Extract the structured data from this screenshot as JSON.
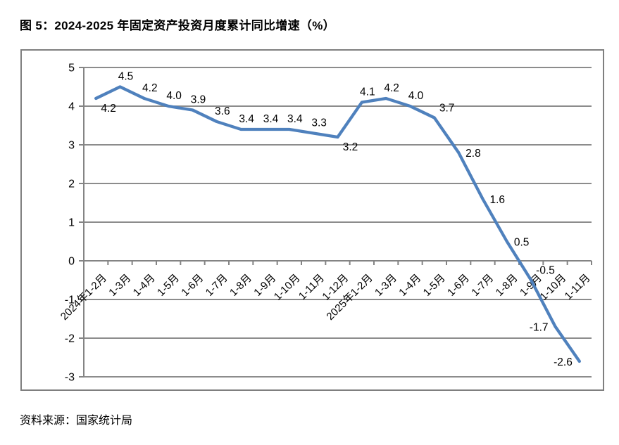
{
  "page": {
    "title": "图 5：2024-2025 年固定资产投资月度累计同比增速（%）",
    "source": "资料来源：国家统计局"
  },
  "chart_data": {
    "type": "line",
    "title": "2024-2025 年固定资产投资月度累计同比增速（%）",
    "categories": [
      "2024年1-2月",
      "1-3月",
      "1-4月",
      "1-5月",
      "1-6月",
      "1-7月",
      "1-8月",
      "1-9月",
      "1-10月",
      "1-11月",
      "1-12月",
      "2025年1-2月",
      "1-3月",
      "1-4月",
      "1-5月",
      "1-6月",
      "1-7月",
      "1-8月",
      "1-9月",
      "1-10月",
      "1-11月"
    ],
    "values": [
      4.2,
      4.5,
      4.2,
      4.0,
      3.9,
      3.6,
      3.4,
      3.4,
      3.4,
      3.3,
      3.2,
      4.1,
      4.2,
      4.0,
      3.7,
      2.8,
      1.6,
      0.5,
      -0.5,
      -1.7,
      -2.6
    ],
    "data_labels": [
      "4.2",
      "4.5",
      "4.2",
      "4.0",
      "3.9",
      "3.6",
      "3.4",
      "3.4",
      "3.4",
      "3.3",
      "3.2",
      "4.1",
      "4.2",
      "4.0",
      "3.7",
      "2.8",
      "1.6",
      "0.5",
      "-0.5",
      "-1.7",
      "-2.6"
    ],
    "label_placements": [
      "below",
      "above",
      "above",
      "above",
      "above",
      "above",
      "above",
      "above",
      "above",
      "above",
      "below",
      "above",
      "above",
      "above",
      "above-right",
      "right",
      "right",
      "right",
      "above-right",
      "left",
      "left"
    ],
    "xlabel": "",
    "ylabel": "",
    "ylim": [
      -3,
      5
    ],
    "ytick_interval": 1,
    "ytick_labels": [
      "5",
      "4",
      "3",
      "2",
      "1",
      "0",
      "-1",
      "-2",
      "-3"
    ],
    "grid": "horizontal",
    "legend": "none",
    "x_label_rotation_deg": 45,
    "line_color": "#4F81BD",
    "grid_color": "#8c8c8c",
    "axis_color": "#848484",
    "label_color": "#000000"
  }
}
